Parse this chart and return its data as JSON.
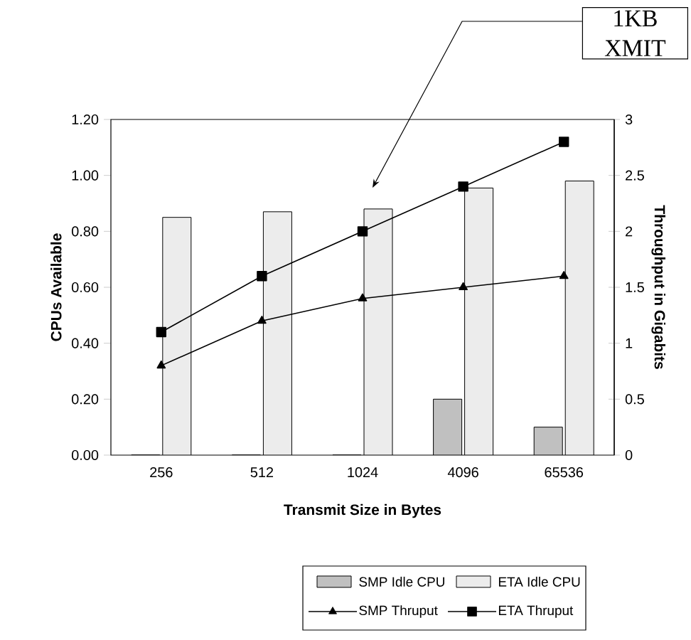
{
  "chart_data": {
    "type": "bar",
    "xlabel": "Transmit Size in Bytes",
    "ylabel": "CPUs Available",
    "y2label": "Throughput in Gigabits",
    "categories": [
      "256",
      "512",
      "1024",
      "4096",
      "65536"
    ],
    "series": [
      {
        "name": "SMP Idle CPU",
        "color": "#c0c0c0",
        "values": [
          0,
          0,
          0,
          0.2,
          0.1
        ]
      },
      {
        "name": "ETA Idle CPU",
        "color": "#ececec",
        "values": [
          0.85,
          0.87,
          0.88,
          0.955,
          0.98
        ]
      },
      {
        "name": "SMP Thruput",
        "type": "line",
        "axis": "y2",
        "color": "#000000",
        "marker": "triangle",
        "values": [
          0.8,
          1.2,
          1.4,
          1.5,
          1.6
        ]
      },
      {
        "name": "ETA Thruput",
        "type": "line",
        "axis": "y2",
        "color": "#000000",
        "marker": "square",
        "values": [
          1.1,
          1.6,
          2.0,
          2.4,
          2.8
        ]
      }
    ],
    "ylim": [
      0,
      1.2
    ],
    "yticks": [
      {
        "value": 0,
        "label": "0.00"
      },
      {
        "value": 0.2,
        "label": "0.20"
      },
      {
        "value": 0.4,
        "label": "0.40"
      },
      {
        "value": 0.6,
        "label": "0.60"
      },
      {
        "value": 0.8,
        "label": "0.80"
      },
      {
        "value": 1.0,
        "label": "1.00"
      },
      {
        "value": 1.2,
        "label": "1.20"
      }
    ],
    "y2lim": [
      0,
      3
    ],
    "y2ticks": [
      0,
      0.5,
      1,
      1.5,
      2,
      2.5,
      3
    ],
    "annotations": [
      "1KB XMIT"
    ],
    "legend": "bottom",
    "grid": false
  }
}
